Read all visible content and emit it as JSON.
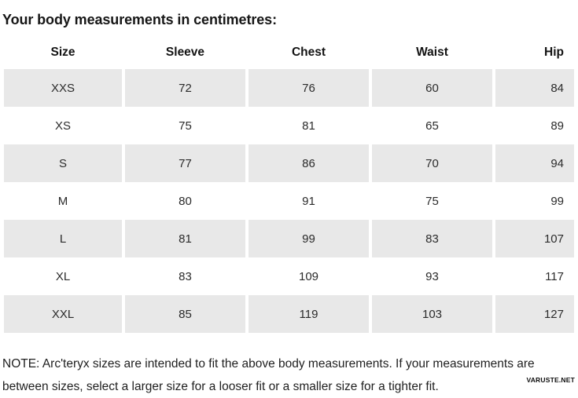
{
  "page_title": "Your body measurements in centimetres:",
  "chart_data": {
    "type": "table",
    "title": "Your body measurements in centimetres:",
    "columns": [
      "Size",
      "Sleeve",
      "Chest",
      "Waist",
      "Hip"
    ],
    "rows": [
      [
        "XXS",
        "72",
        "76",
        "60",
        "84"
      ],
      [
        "XS",
        "75",
        "81",
        "65",
        "89"
      ],
      [
        "S",
        "77",
        "86",
        "70",
        "94"
      ],
      [
        "M",
        "80",
        "91",
        "75",
        "99"
      ],
      [
        "L",
        "81",
        "99",
        "83",
        "107"
      ],
      [
        "XL",
        "83",
        "109",
        "93",
        "117"
      ],
      [
        "XXL",
        "85",
        "119",
        "103",
        "127"
      ]
    ],
    "layout_hints": {
      "shaded_rows": [
        "XXS",
        "S",
        "L",
        "XXL"
      ],
      "row_shade_color": "#e8e8e8",
      "last_column_alignment": "right",
      "other_columns_alignment": "center"
    }
  },
  "note": {
    "line1": "NOTE: Arc'teryx sizes are intended to fit the above body measurements. If your measurements are",
    "line2": "between sizes, select a larger size for a looser fit or a smaller size for a tighter fit."
  },
  "watermark": "VARUSTE.NET",
  "colors": {
    "background": "#ffffff",
    "row_shade": "#e8e8e8",
    "text": "#1a1a1a"
  }
}
